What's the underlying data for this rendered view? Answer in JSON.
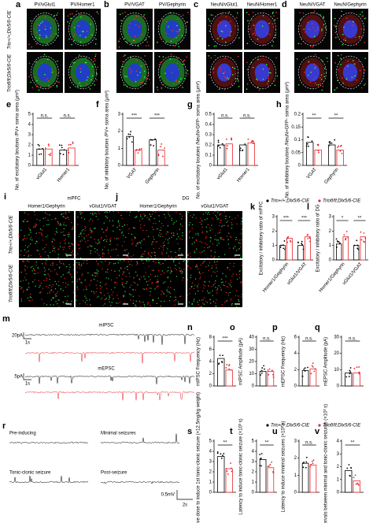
{
  "figure": {
    "rows": [
      "Trio+/+;Dlx5/6-CIE",
      "Triofl/fl;Dlx5/6-CIE"
    ],
    "image_panels": [
      {
        "letter": "a",
        "labels": [
          "PV/vGlut1",
          "PV/Homer1"
        ]
      },
      {
        "letter": "b",
        "labels": [
          "PV/VGAT",
          "PV/Gephyrin"
        ]
      },
      {
        "letter": "c",
        "labels": [
          "NeuN/vGlut1",
          "NeuN/Homer1"
        ]
      },
      {
        "letter": "d",
        "labels": [
          "NeuN/VGAT",
          "NeuN/Gephyrin"
        ]
      },
      {
        "letter": "i",
        "title": "mPFC",
        "labels": [
          "Homer1/Gephyrin",
          "vGlut1/VGAT"
        ]
      },
      {
        "letter": "j",
        "title": "DG",
        "labels": [
          "Homer1/Gephyrin",
          "vGlut1/VGAT"
        ]
      }
    ],
    "m": {
      "letter": "m",
      "labels": [
        "mIPSC",
        "mEPSC"
      ],
      "scales": [
        "20pA",
        "1s",
        "5pA",
        "1s"
      ]
    },
    "r": {
      "letter": "r",
      "labels": [
        "Pre-inducing",
        "Minimal seizures",
        "Tonic-clonic seizure",
        "Post-seizure"
      ],
      "scales": [
        "0.5mV",
        "2s"
      ]
    }
  },
  "chart_data": [
    {
      "type": "bar",
      "panel": "e",
      "ylabel": "No. of excitatory boutons /PV+ soma area (μm²)",
      "categories": [
        "vGlut1",
        "Homer1"
      ],
      "series": [
        {
          "name": "Trio+/+;Dlx5/6-CIE",
          "color": "#000000",
          "values": [
            1.6,
            1.5
          ]
        },
        {
          "name": "Triofl/fl;Dlx5/6-CIE",
          "color": "#e8242b",
          "values": [
            1.6,
            1.7
          ]
        }
      ],
      "ylim": [
        0,
        5
      ],
      "yticks": [
        0,
        1,
        2,
        3,
        4,
        5
      ],
      "annotations": [
        "n.s.",
        "n.s."
      ]
    },
    {
      "type": "bar",
      "panel": "f",
      "ylabel": "No. of inhibitory boutons /PV+ soma area (μm²)",
      "categories": [
        "VGAT",
        "Gephyrin"
      ],
      "series": [
        {
          "name": "Trio+/+;Dlx5/6-CIE",
          "color": "#000000",
          "values": [
            1.7,
            1.5
          ]
        },
        {
          "name": "Triofl/fl;Dlx5/6-CIE",
          "color": "#e8242b",
          "values": [
            0.9,
            0.9
          ]
        }
      ],
      "ylim": [
        0,
        3
      ],
      "yticks": [
        0,
        1,
        2,
        3
      ],
      "annotations": [
        "***",
        "***"
      ]
    },
    {
      "type": "bar",
      "panel": "g",
      "ylabel": "No. of excitatory boutons /NeuN+GFP- soma area (μm²)",
      "categories": [
        "vGlut1",
        "Homer1"
      ],
      "series": [
        {
          "name": "Trio+/+;Dlx5/6-CIE",
          "color": "#000000",
          "values": [
            0.2,
            0.2
          ]
        },
        {
          "name": "Triofl/fl;Dlx5/6-CIE",
          "color": "#e8242b",
          "values": [
            0.21,
            0.22
          ]
        }
      ],
      "ylim": [
        0,
        0.5
      ],
      "yticks": [
        0,
        0.1,
        0.2,
        0.3,
        0.4,
        0.5
      ],
      "annotations": [
        "n.s.",
        "n.s."
      ]
    },
    {
      "type": "bar",
      "panel": "h",
      "ylabel": "No. of inhibitory boutons /NeuN+GFP- soma area (μm²)",
      "categories": [
        "VGAT",
        "Gephyrin"
      ],
      "series": [
        {
          "name": "Trio+/+;Dlx5/6-CIE",
          "color": "#000000",
          "values": [
            0.09,
            0.08
          ]
        },
        {
          "name": "Triofl/fl;Dlx5/6-CIE",
          "color": "#e8242b",
          "values": [
            0.06,
            0.06
          ]
        }
      ],
      "ylim": [
        0,
        0.2
      ],
      "yticks": [
        0,
        0.05,
        0.1,
        0.15,
        0.2
      ],
      "annotations": [
        "**",
        "**"
      ]
    },
    {
      "type": "bar",
      "panel": "k",
      "ylabel": "Excitatory / inhibitory ratio of mPFC",
      "categories": [
        "Homer1/Gephyrin",
        "vGlut1/VGAT"
      ],
      "legend": true,
      "series": [
        {
          "name": "Trio+/+;Dlx5/6-CIE",
          "color": "#000000",
          "values": [
            1.0,
            1.0
          ]
        },
        {
          "name": "Triofl/fl;Dlx5/6-CIE",
          "color": "#e8242b",
          "values": [
            1.5,
            1.6
          ]
        }
      ],
      "ylim": [
        0,
        3
      ],
      "yticks": [
        0,
        1,
        2,
        3
      ],
      "annotations": [
        "***",
        "***"
      ]
    },
    {
      "type": "bar",
      "panel": "l",
      "ylabel": "Excitatory / inhibitory ratio of DG",
      "categories": [
        "Homer1/Gephyrin",
        "vGlut1/VGAT"
      ],
      "series": [
        {
          "name": "Trio+/+;Dlx5/6-CIE",
          "color": "#000000",
          "values": [
            1.1,
            1.0
          ]
        },
        {
          "name": "Triofl/fl;Dlx5/6-CIE",
          "color": "#e8242b",
          "values": [
            1.6,
            1.6
          ]
        }
      ],
      "ylim": [
        0,
        3
      ],
      "yticks": [
        0,
        1,
        2,
        3
      ],
      "annotations": [
        "*",
        "**"
      ]
    },
    {
      "type": "bar",
      "panel": "n",
      "ylabel": "mIPSC Frequency (Hz)",
      "series": [
        {
          "name": "Trio+/+;Dlx5/6-CIE",
          "color": "#000000",
          "values": [
            4.5
          ]
        },
        {
          "name": "Triofl/fl;Dlx5/6-CIE",
          "color": "#e8242b",
          "values": [
            2.6
          ]
        }
      ],
      "ylim": [
        0,
        8
      ],
      "yticks": [
        0,
        2,
        4,
        6,
        8
      ],
      "annotations": [
        "***"
      ]
    },
    {
      "type": "bar",
      "panel": "o",
      "ylabel": "mIPSC Amplitude (pA)",
      "series": [
        {
          "name": "Trio+/+;Dlx5/6-CIE",
          "color": "#000000",
          "values": [
            12
          ]
        },
        {
          "name": "Triofl/fl;Dlx5/6-CIE",
          "color": "#e8242b",
          "values": [
            12
          ]
        }
      ],
      "ylim": [
        0,
        40
      ],
      "yticks": [
        0,
        10,
        20,
        30,
        40
      ],
      "annotations": [
        "n.s."
      ]
    },
    {
      "type": "bar",
      "panel": "p",
      "ylabel": "mEPSC Frequency (Hz)",
      "series": [
        {
          "name": "Trio+/+;Dlx5/6-CIE",
          "color": "#000000",
          "values": [
            1.9
          ]
        },
        {
          "name": "Triofl/fl;Dlx5/6-CIE",
          "color": "#e8242b",
          "values": [
            2.1
          ]
        }
      ],
      "ylim": [
        0,
        6
      ],
      "yticks": [
        0,
        2,
        4,
        6
      ],
      "annotations": [
        "n.s."
      ]
    },
    {
      "type": "bar",
      "panel": "q",
      "ylabel": "mEPSC Amplitude (pA)",
      "series": [
        {
          "name": "Trio+/+;Dlx5/6-CIE",
          "color": "#000000",
          "values": [
            8
          ]
        },
        {
          "name": "Triofl/fl;Dlx5/6-CIE",
          "color": "#e8242b",
          "values": [
            8
          ]
        }
      ],
      "ylim": [
        0,
        30
      ],
      "yticks": [
        0,
        10,
        20,
        30
      ],
      "annotations": [
        "n.s."
      ]
    },
    {
      "type": "bar",
      "panel": "s",
      "ylabel": "Cumulative dose to induce 1st tonic-clonic seizure (×12.5mg/kg weight)",
      "legend": true,
      "series": [
        {
          "name": "Trio+/+;Dlx5/6-CIE",
          "color": "#000000",
          "values": [
            3.5
          ]
        },
        {
          "name": "Triofl/fl;Dlx5/6-CIE",
          "color": "#e8242b",
          "values": [
            2.3
          ]
        }
      ],
      "ylim": [
        0,
        5
      ],
      "yticks": [
        0,
        1,
        2,
        3,
        4,
        5
      ],
      "annotations": [
        "**"
      ]
    },
    {
      "type": "bar",
      "panel": "t",
      "ylabel": "Latency to induce tonic-clonic seizure (×10³ s)",
      "series": [
        {
          "name": "Trio+/+;Dlx5/6-CIE",
          "color": "#000000",
          "values": [
            3.2
          ]
        },
        {
          "name": "Triofl/fl;Dlx5/6-CIE",
          "color": "#e8242b",
          "values": [
            2.4
          ]
        }
      ],
      "ylim": [
        0,
        5
      ],
      "yticks": [
        0,
        1,
        2,
        3,
        4,
        5
      ],
      "annotations": [
        "**"
      ]
    },
    {
      "type": "bar",
      "panel": "u",
      "ylabel": "Latency to induce minimal seizures (×10³ s)",
      "series": [
        {
          "name": "Trio+/+;Dlx5/6-CIE",
          "color": "#000000",
          "values": [
            1.7
          ]
        },
        {
          "name": "Triofl/fl;Dlx5/6-CIE",
          "color": "#e8242b",
          "values": [
            1.6
          ]
        }
      ],
      "ylim": [
        0,
        3
      ],
      "yticks": [
        0,
        1,
        2,
        3
      ],
      "annotations": [
        "n.s."
      ]
    },
    {
      "type": "bar",
      "panel": "v",
      "ylabel": "Intervals between minimal and tonic-clonic seizures (×10³ s)",
      "series": [
        {
          "name": "Trio+/+;Dlx5/6-CIE",
          "color": "#000000",
          "values": [
            1.7
          ]
        },
        {
          "name": "Triofl/fl;Dlx5/6-CIE",
          "color": "#e8242b",
          "values": [
            0.9
          ]
        }
      ],
      "ylim": [
        0,
        4
      ],
      "yticks": [
        0,
        1,
        2,
        3,
        4
      ],
      "annotations": [
        "**"
      ]
    }
  ]
}
